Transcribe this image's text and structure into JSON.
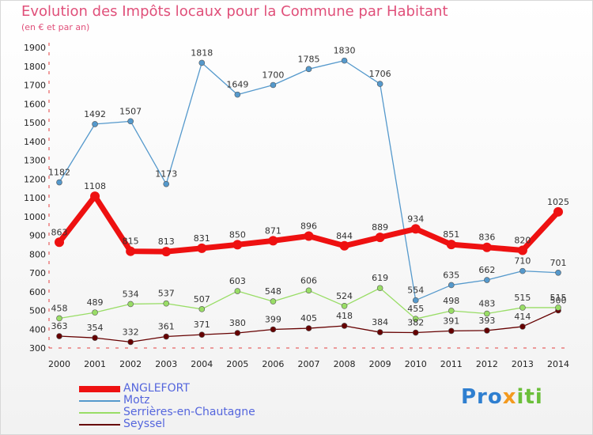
{
  "title": "Evolution des Impôts locaux pour la Commune par Habitant",
  "subtitle": "(en € et par an)",
  "logo": {
    "part1": "Pro",
    "part2": "x",
    "part3": "iti"
  },
  "colors": {
    "anglefort": "#ee1111",
    "motz": "#5599cc",
    "serrieres": "#99dd66",
    "seyssel": "#660000",
    "title": "#e0507a",
    "legend_text": "#5566dd"
  },
  "chart_data": {
    "type": "line",
    "categories": [
      "2000",
      "2001",
      "2002",
      "2003",
      "2004",
      "2005",
      "2006",
      "2007",
      "2008",
      "2009",
      "2010",
      "2011",
      "2012",
      "2013",
      "2014"
    ],
    "ylim": [
      300,
      1900
    ],
    "yticks": [
      300,
      400,
      500,
      600,
      700,
      800,
      900,
      1000,
      1100,
      1200,
      1300,
      1400,
      1500,
      1600,
      1700,
      1800,
      1900
    ],
    "grid": "none",
    "legend_position": "bottom-left",
    "series": [
      {
        "name": "ANGLEFORT",
        "key": "anglefort",
        "values": [
          863,
          1108,
          815,
          813,
          831,
          850,
          871,
          896,
          844,
          889,
          934,
          851,
          836,
          820,
          1025
        ]
      },
      {
        "name": "Motz",
        "key": "motz",
        "values": [
          1182,
          1492,
          1507,
          1173,
          1818,
          1649,
          1700,
          1785,
          1830,
          1706,
          554,
          635,
          662,
          710,
          701
        ]
      },
      {
        "name": "Serrières-en-Chautagne",
        "key": "serrieres",
        "values": [
          458,
          489,
          534,
          537,
          507,
          603,
          548,
          606,
          524,
          619,
          455,
          498,
          483,
          515,
          515
        ]
      },
      {
        "name": "Seyssel",
        "key": "seyssel",
        "values": [
          363,
          354,
          332,
          361,
          371,
          380,
          399,
          405,
          418,
          384,
          382,
          391,
          393,
          414,
          500
        ]
      }
    ]
  }
}
